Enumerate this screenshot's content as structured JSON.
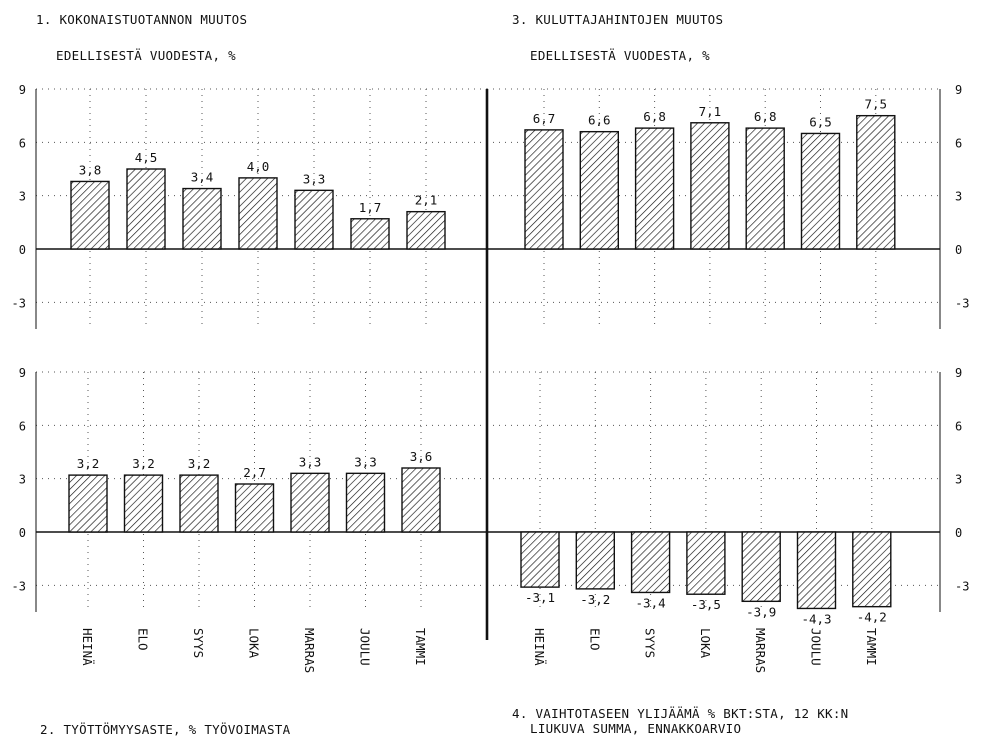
{
  "titles": {
    "chart1_line1": "1. KOKONAISTUOTANNON MUUTOS",
    "chart1_line2": "EDELLISESTÄ VUODESTA, %",
    "chart3_line1": "3. KULUTTAJAHINTOJEN MUUTOS",
    "chart3_line2": "EDELLISESTÄ VUODESTA, %",
    "chart2_line1": "2. TYÖTTÖMYYSASTE, % TYÖVOIMASTA",
    "chart4_line1": "4. VAIHTOTASEEN YLIJÄÄMÄ % BKT:STA, 12 KK:N",
    "chart4_line2": "LIUKUVA SUMMA, ENNAKKOARVIO"
  },
  "colors": {
    "ink": "#111111",
    "grid": "#555555",
    "bar_fill": "#ffffff",
    "hatch": "#111111"
  },
  "chart_data": [
    {
      "type": "bar",
      "title": "1. KOKONAISTUOTANNON MUUTOS EDELLISESTÄ VUODESTA, %",
      "categories": [
        "HEINÄ",
        "ELO",
        "SYYS",
        "LOKA",
        "MARRAS",
        "JOULU",
        "TAMMI"
      ],
      "values": [
        3.8,
        4.5,
        3.4,
        4.0,
        3.3,
        1.7,
        2.1
      ],
      "value_labels": [
        "3,8",
        "4,5",
        "3,4",
        "4,0",
        "3,3",
        "1,7",
        "2,1"
      ],
      "ylim": [
        -4.5,
        9
      ],
      "yticks": [
        9,
        6,
        3,
        0,
        -3
      ],
      "axis_side": "left",
      "grid": true,
      "hatched": true
    },
    {
      "type": "bar",
      "title": "3. KULUTTAJAHINTOJEN MUUTOS EDELLISESTÄ VUODESTA, %",
      "categories": [
        "HEINÄ",
        "ELO",
        "SYYS",
        "LOKA",
        "MARRAS",
        "JOULU",
        "TAMMI"
      ],
      "values": [
        6.7,
        6.6,
        6.8,
        7.1,
        6.8,
        6.5,
        7.5
      ],
      "value_labels": [
        "6,7",
        "6,6",
        "6,8",
        "7,1",
        "6,8",
        "6,5",
        "7,5"
      ],
      "ylim": [
        -4.5,
        9
      ],
      "yticks": [
        9,
        6,
        3,
        0,
        -3
      ],
      "axis_side": "right",
      "grid": true,
      "hatched": true
    },
    {
      "type": "bar",
      "title": "2. TYÖTTÖMYYSASTE, % TYÖVOIMASTA",
      "categories": [
        "HEINÄ",
        "ELO",
        "SYYS",
        "LOKA",
        "MARRAS",
        "JOULU",
        "TAMMI"
      ],
      "values": [
        3.2,
        3.2,
        3.2,
        2.7,
        3.3,
        3.3,
        3.6
      ],
      "value_labels": [
        "3,2",
        "3,2",
        "3,2",
        "2,7",
        "3,3",
        "3,3",
        "3,6"
      ],
      "ylim": [
        -4.5,
        9
      ],
      "yticks": [
        9,
        6,
        3,
        0,
        -3
      ],
      "axis_side": "left",
      "grid": true,
      "hatched": true
    },
    {
      "type": "bar",
      "title": "4. VAIHTOTASEEN YLIJÄÄMÄ % BKT:STA, 12 KK:N LIUKUVA SUMMA, ENNAKKOARVIO",
      "categories": [
        "HEINÄ",
        "ELO",
        "SYYS",
        "LOKA",
        "MARRAS",
        "JOULU",
        "TAMMI"
      ],
      "values": [
        -3.1,
        -3.2,
        -3.4,
        -3.5,
        -3.9,
        -4.3,
        -4.2
      ],
      "value_labels": [
        "-3,1",
        "-3,2",
        "-3,4",
        "-3,5",
        "-3,9",
        "-4,3",
        "-4,2"
      ],
      "ylim": [
        -4.5,
        9
      ],
      "yticks": [
        9,
        6,
        3,
        0,
        -3
      ],
      "axis_side": "right",
      "grid": true,
      "hatched": true
    }
  ]
}
